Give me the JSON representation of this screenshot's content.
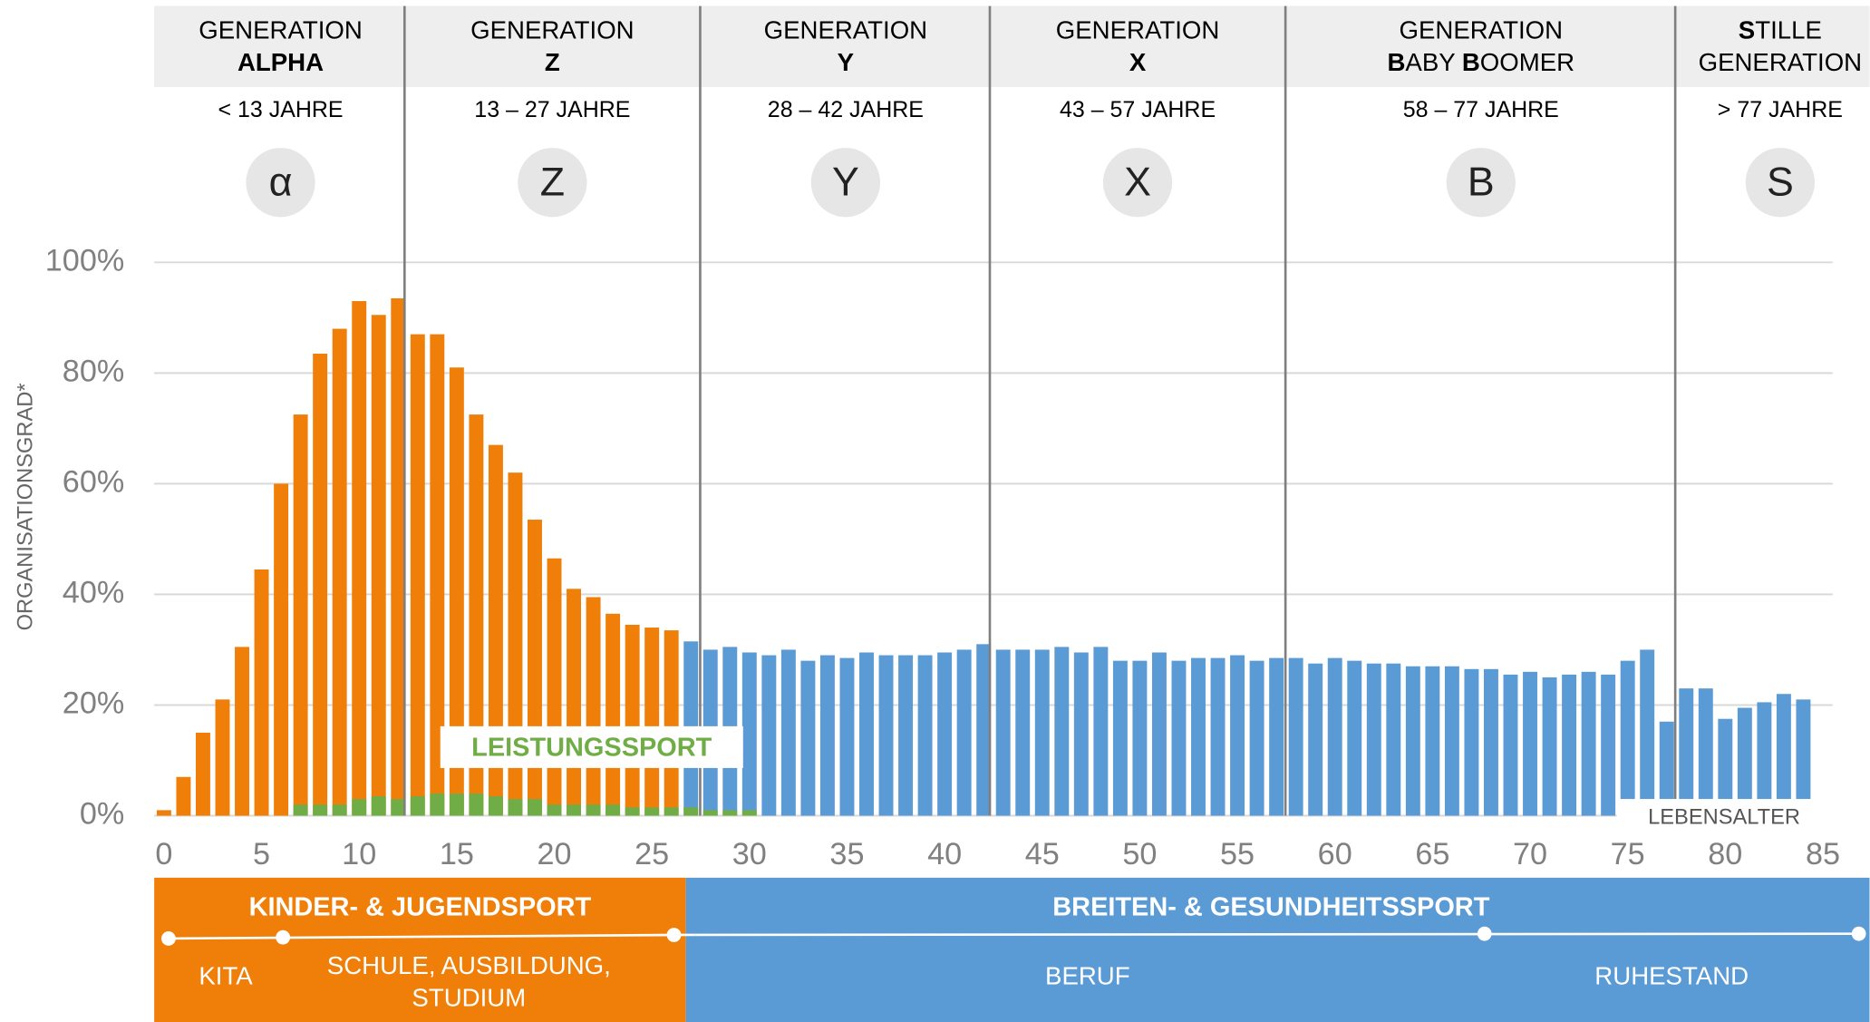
{
  "generations": [
    {
      "line1": [
        {
          "text": "GENERATION",
          "bold": false
        }
      ],
      "line2": [
        {
          "text": "ALPHA",
          "bold": true
        }
      ],
      "range": "< 13 JAHRE",
      "icon": "α"
    },
    {
      "line1": [
        {
          "text": "GENERATION",
          "bold": false
        }
      ],
      "line2": [
        {
          "text": "Z",
          "bold": true
        }
      ],
      "range": "13 – 27 JAHRE",
      "icon": "Z"
    },
    {
      "line1": [
        {
          "text": "GENERATION",
          "bold": false
        }
      ],
      "line2": [
        {
          "text": "Y",
          "bold": true
        }
      ],
      "range": "28 – 42 JAHRE",
      "icon": "Y"
    },
    {
      "line1": [
        {
          "text": "GENERATION",
          "bold": false
        }
      ],
      "line2": [
        {
          "text": "X",
          "bold": true
        }
      ],
      "range": "43 – 57 JAHRE",
      "icon": "X"
    },
    {
      "line1": [
        {
          "text": "GENERATION",
          "bold": false
        }
      ],
      "line2": [
        {
          "text": "B",
          "bold": true
        },
        {
          "text": "ABY ",
          "bold": false
        },
        {
          "text": "B",
          "bold": true
        },
        {
          "text": "OOMER",
          "bold": false
        }
      ],
      "range": "58 – 77 JAHRE",
      "icon": "B"
    },
    {
      "line1": [
        {
          "text": "S",
          "bold": true
        },
        {
          "text": "TILLE",
          "bold": false
        }
      ],
      "line2": [
        {
          "text": "GENERATION",
          "bold": false
        }
      ],
      "range": "> 77 JAHRE",
      "icon": "S"
    }
  ],
  "phases": {
    "orange": [
      "KITA",
      "SCHULE, AUSBILDUNG,",
      "STUDIUM"
    ],
    "blue": [
      "BERUF",
      "RUHESTAND"
    ]
  },
  "chart_data": {
    "type": "bar",
    "y_label": "ORGANISATIONSGRAD*",
    "x_label": "LEBENSALTER",
    "xlim": [
      -0.5,
      85.5
    ],
    "xticks": [
      0,
      5,
      10,
      15,
      20,
      25,
      30,
      35,
      40,
      45,
      50,
      55,
      60,
      65,
      70,
      75,
      80,
      85
    ],
    "ylim": [
      0,
      100
    ],
    "yticks": [
      {
        "value": 0,
        "label": "0%"
      },
      {
        "value": 20,
        "label": "20%"
      },
      {
        "value": 40,
        "label": "40%"
      },
      {
        "value": 60,
        "label": "60%"
      },
      {
        "value": 80,
        "label": "80%"
      },
      {
        "value": 100,
        "label": "100%"
      }
    ],
    "grid": true,
    "series": [
      {
        "name": "KINDER- & JUGENDSPORT",
        "color": "#f07f09",
        "x": [
          0,
          1,
          2,
          3,
          4,
          5,
          6,
          7,
          8,
          9,
          10,
          11,
          12,
          13,
          14,
          15,
          16,
          17,
          18,
          19,
          20,
          21,
          22,
          23,
          24,
          25,
          26
        ],
        "values": [
          1,
          7,
          15,
          21,
          30.5,
          44.5,
          60,
          72.5,
          83.5,
          88,
          93,
          90.5,
          93.5,
          87,
          87,
          81,
          72.5,
          67,
          62,
          53.5,
          46.5,
          41,
          39.5,
          36.5,
          34.5,
          34,
          33.5
        ]
      },
      {
        "name": "BREITEN- & GESUNDHEITSSPORT",
        "color": "#5b9bd5",
        "x": [
          27,
          28,
          29,
          30,
          31,
          32,
          33,
          34,
          35,
          36,
          37,
          38,
          39,
          40,
          41,
          42,
          43,
          44,
          45,
          46,
          47,
          48,
          49,
          50,
          51,
          52,
          53,
          54,
          55,
          56,
          57,
          58,
          59,
          60,
          61,
          62,
          63,
          64,
          65,
          66,
          67,
          68,
          69,
          70,
          71,
          72,
          73,
          74,
          75,
          76,
          77,
          78,
          79,
          80,
          81,
          82,
          83,
          84,
          85
        ],
        "values": [
          31.5,
          30,
          30.5,
          29.5,
          29,
          30,
          28,
          29,
          28.5,
          29.5,
          29,
          29,
          29,
          29.5,
          30,
          31,
          30,
          30,
          30,
          30.5,
          29.5,
          30.5,
          28,
          28,
          29.5,
          28,
          28.5,
          28.5,
          29,
          28,
          28.5,
          28.5,
          27.5,
          28.5,
          28,
          27.5,
          27.5,
          27,
          27,
          27,
          26.5,
          26.5,
          25.5,
          26,
          25,
          25.5,
          26,
          25.5,
          28,
          30,
          17,
          23,
          23,
          17.5,
          19.5,
          20.5,
          22,
          21,
          2
        ]
      },
      {
        "name": "LEISTUNGSSPORT",
        "color": "#70ad47",
        "x": [
          7,
          8,
          9,
          10,
          11,
          12,
          13,
          14,
          15,
          16,
          17,
          18,
          19,
          20,
          21,
          22,
          23,
          24,
          25,
          26,
          27,
          28,
          29,
          30
        ],
        "values": [
          2,
          2,
          2,
          3,
          3.5,
          3,
          3.5,
          4,
          4,
          4,
          3.5,
          3,
          3,
          2,
          2,
          2,
          2,
          1.5,
          1.5,
          1.5,
          1.5,
          1,
          1,
          1
        ]
      }
    ]
  }
}
